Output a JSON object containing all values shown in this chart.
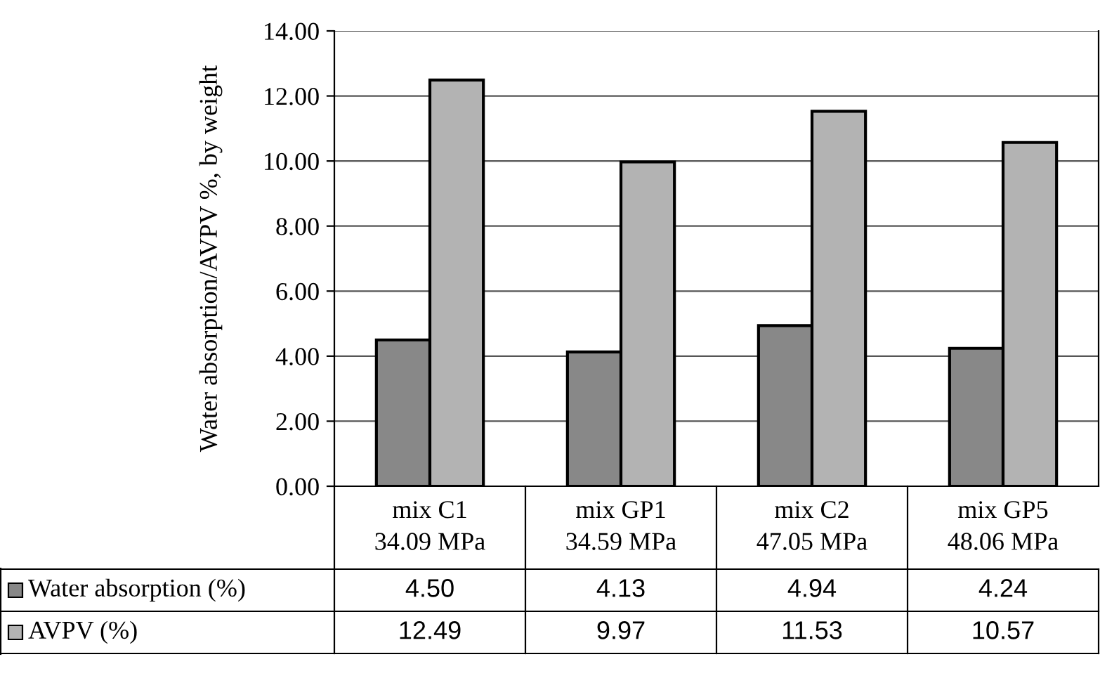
{
  "chart_data": {
    "type": "bar",
    "ylabel": "Water absorption/AVPV %, by weight",
    "categories": [
      "mix C1\n34.09 MPa",
      "mix GP1\n34.59 MPa",
      "mix C2\n47.05 MPa",
      "mix GP5\n48.06 MPa"
    ],
    "series": [
      {
        "name": "Water absorption (%)",
        "color": "#888888",
        "values": [
          4.5,
          4.13,
          4.94,
          4.24
        ],
        "value_labels": [
          "4.50",
          "4.13",
          "4.94",
          "4.24"
        ]
      },
      {
        "name": "AVPV (%)",
        "color": "#b3b3b3",
        "values": [
          12.49,
          9.97,
          11.53,
          10.57
        ],
        "value_labels": [
          "12.49",
          "9.97",
          "11.53",
          "10.57"
        ]
      }
    ],
    "ylim": [
      0,
      14
    ],
    "yticks": [
      {
        "value": 0,
        "label": "0.00"
      },
      {
        "value": 2,
        "label": "2.00"
      },
      {
        "value": 4,
        "label": "4.00"
      },
      {
        "value": 6,
        "label": "6.00"
      },
      {
        "value": 8,
        "label": "8.00"
      },
      {
        "value": 10,
        "label": "10.00"
      },
      {
        "value": 12,
        "label": "12.00"
      },
      {
        "value": 14,
        "label": "14.00"
      }
    ],
    "grid": "y",
    "legend": "bottom left"
  }
}
